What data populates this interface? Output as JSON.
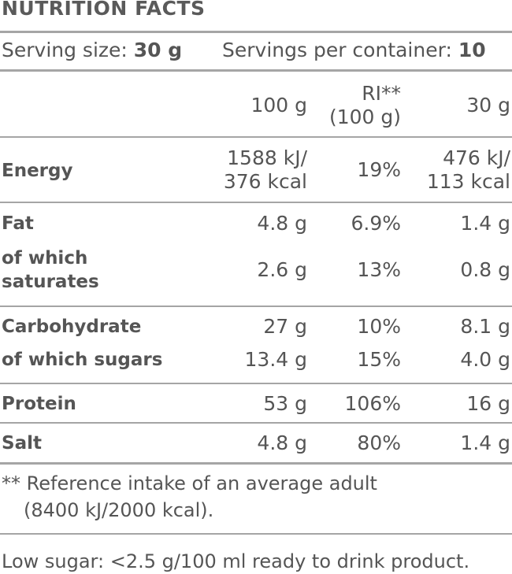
{
  "title": "NUTRITION FACTS",
  "serving": {
    "size_label": "Serving size:",
    "size_value": "30 g",
    "per_container_label": "Servings per container:",
    "per_container_value": "10"
  },
  "header": {
    "col_100g": "100 g",
    "col_ri_line1": "RI**",
    "col_ri_line2": "(100 g)",
    "col_30g": "30 g"
  },
  "rows": [
    {
      "label": "Energy",
      "v100_l1": "1588 kJ/",
      "v100_l2": "376 kcal",
      "ri": "19%",
      "v30_l1": "476 kJ/",
      "v30_l2": "113 kcal"
    },
    {
      "label": "Fat",
      "v100": "4.8 g",
      "ri": "6.9%",
      "v30": "1.4 g"
    },
    {
      "label_l1": "of which",
      "label_l2": "saturates",
      "v100": "2.6 g",
      "ri": "13%",
      "v30": "0.8 g"
    },
    {
      "label": "Carbohydrate",
      "v100": "27 g",
      "ri": "10%",
      "v30": "8.1 g"
    },
    {
      "label": "of which sugars",
      "v100": "13.4 g",
      "ri": "15%",
      "v30": "4.0 g"
    },
    {
      "label": "Protein",
      "v100": "53 g",
      "ri": "106%",
      "v30": "16 g"
    },
    {
      "label": "Salt",
      "v100": "4.8 g",
      "ri": "80%",
      "v30": "1.4 g"
    }
  ],
  "footnote": {
    "line1": "** Reference intake of an average adult",
    "line2": "(8400 kJ/2000 kcal)."
  },
  "claim": "Low sugar: <2.5 g/100 ml ready to drink product."
}
